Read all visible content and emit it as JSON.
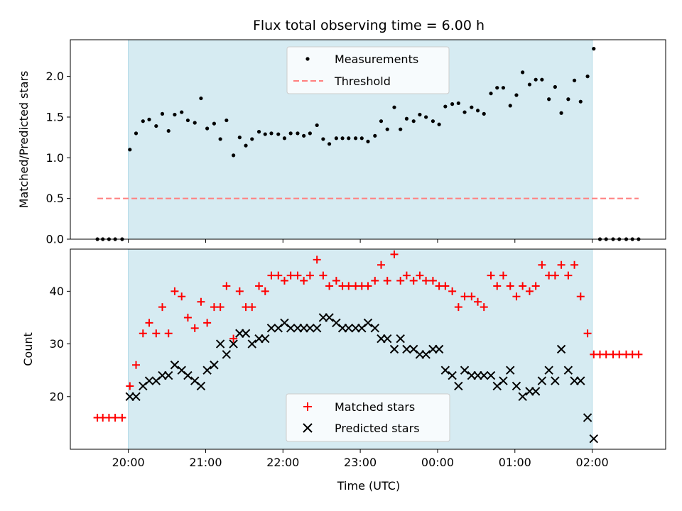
{
  "figure": {
    "title": "Flux total observing time = 6.00 h",
    "xlabel": "Time (UTC)",
    "x_tick_labels": [
      "20:00",
      "21:00",
      "22:00",
      "23:00",
      "00:00",
      "01:00",
      "02:00"
    ],
    "colors": {
      "shade": "#add8e6",
      "measurements": "#000000",
      "threshold": "#ff7f7f",
      "matched": "#ff0000",
      "predicted": "#000000"
    }
  },
  "chart_data": [
    {
      "type": "scatter",
      "ylabel": "Matched/Predicted stars",
      "ylim": [
        0,
        2.45
      ],
      "yticks": [
        "0.0",
        "0.5",
        "1.0",
        "1.5",
        "2.0"
      ],
      "xaxis": "hours after 20:00 UTC",
      "xlim": [
        -0.75,
        6.95
      ],
      "shaded_interval": [
        "20:00",
        "02:00"
      ],
      "legend_position": "top-center",
      "series": [
        {
          "name": "Measurements",
          "marker": "dot",
          "x": [
            -0.4,
            -0.33,
            -0.25,
            -0.17,
            -0.08,
            0.02,
            0.1,
            0.19,
            0.27,
            0.36,
            0.44,
            0.52,
            0.6,
            0.69,
            0.77,
            0.86,
            0.94,
            1.02,
            1.11,
            1.19,
            1.27,
            1.36,
            1.44,
            1.52,
            1.6,
            1.69,
            1.77,
            1.85,
            1.94,
            2.02,
            2.1,
            2.19,
            2.27,
            2.35,
            2.44,
            2.52,
            2.6,
            2.69,
            2.77,
            2.85,
            2.94,
            3.02,
            3.1,
            3.19,
            3.27,
            3.35,
            3.44,
            3.52,
            3.6,
            3.69,
            3.77,
            3.85,
            3.94,
            4.02,
            4.1,
            4.19,
            4.27,
            4.35,
            4.44,
            4.52,
            4.6,
            4.69,
            4.77,
            4.85,
            4.94,
            5.02,
            5.1,
            5.19,
            5.27,
            5.35,
            5.44,
            5.52,
            5.6,
            5.69,
            5.77,
            5.85,
            5.94,
            6.02,
            6.1,
            6.18,
            6.27,
            6.35,
            6.44,
            6.52,
            6.6
          ],
          "y": [
            0,
            0,
            0,
            0,
            0,
            1.1,
            1.3,
            1.45,
            1.47,
            1.39,
            1.54,
            1.33,
            1.53,
            1.56,
            1.46,
            1.43,
            1.73,
            1.36,
            1.42,
            1.23,
            1.46,
            1.03,
            1.25,
            1.15,
            1.23,
            1.32,
            1.29,
            1.3,
            1.29,
            1.24,
            1.3,
            1.3,
            1.27,
            1.3,
            1.4,
            1.23,
            1.17,
            1.24,
            1.24,
            1.24,
            1.24,
            1.24,
            1.2,
            1.27,
            1.45,
            1.35,
            1.62,
            1.35,
            1.48,
            1.45,
            1.53,
            1.5,
            1.45,
            1.41,
            1.63,
            1.66,
            1.67,
            1.56,
            1.62,
            1.58,
            1.54,
            1.79,
            1.86,
            1.86,
            1.64,
            1.77,
            2.05,
            1.9,
            1.96,
            1.96,
            1.72,
            1.87,
            1.55,
            1.72,
            1.95,
            1.69,
            2.0,
            2.34,
            0,
            0,
            0,
            0,
            0,
            0,
            0
          ]
        },
        {
          "name": "Threshold",
          "style": "dashed",
          "x": [
            -0.4,
            6.6
          ],
          "y": [
            0.5,
            0.5
          ]
        }
      ]
    },
    {
      "type": "scatter",
      "ylabel": "Count",
      "ylim": [
        10,
        48
      ],
      "yticks": [
        "20",
        "30",
        "40"
      ],
      "xaxis": "hours after 20:00 UTC",
      "xlim": [
        -0.75,
        6.95
      ],
      "shaded_interval": [
        "20:00",
        "02:00"
      ],
      "legend_position": "bottom-center",
      "series": [
        {
          "name": "Matched stars",
          "marker": "plus",
          "x": [
            -0.4,
            -0.33,
            -0.25,
            -0.17,
            -0.08,
            0.02,
            0.1,
            0.19,
            0.27,
            0.36,
            0.44,
            0.52,
            0.6,
            0.69,
            0.77,
            0.86,
            0.94,
            1.02,
            1.11,
            1.19,
            1.27,
            1.36,
            1.44,
            1.52,
            1.6,
            1.69,
            1.77,
            1.85,
            1.94,
            2.02,
            2.1,
            2.19,
            2.27,
            2.35,
            2.44,
            2.52,
            2.6,
            2.69,
            2.77,
            2.85,
            2.94,
            3.02,
            3.1,
            3.19,
            3.27,
            3.35,
            3.44,
            3.52,
            3.6,
            3.69,
            3.77,
            3.85,
            3.94,
            4.02,
            4.1,
            4.19,
            4.27,
            4.35,
            4.44,
            4.52,
            4.6,
            4.69,
            4.77,
            4.85,
            4.94,
            5.02,
            5.1,
            5.19,
            5.27,
            5.35,
            5.44,
            5.52,
            5.6,
            5.69,
            5.77,
            5.85,
            5.94,
            6.02,
            6.1,
            6.18,
            6.27,
            6.35,
            6.44,
            6.52,
            6.6
          ],
          "y": [
            16,
            16,
            16,
            16,
            16,
            22,
            26,
            32,
            34,
            32,
            37,
            32,
            40,
            39,
            35,
            33,
            38,
            34,
            37,
            37,
            41,
            31,
            40,
            37,
            37,
            41,
            40,
            43,
            43,
            42,
            43,
            43,
            42,
            43,
            46,
            43,
            41,
            42,
            41,
            41,
            41,
            41,
            41,
            42,
            45,
            42,
            47,
            42,
            43,
            42,
            43,
            42,
            42,
            41,
            41,
            40,
            37,
            39,
            39,
            38,
            37,
            43,
            41,
            43,
            41,
            39,
            41,
            40,
            41,
            45,
            43,
            43,
            45,
            43,
            45,
            39,
            32,
            28,
            28,
            28,
            28,
            28,
            28,
            28,
            28
          ]
        },
        {
          "name": "Predicted stars",
          "marker": "x",
          "x": [
            0.02,
            0.1,
            0.19,
            0.27,
            0.36,
            0.44,
            0.52,
            0.6,
            0.69,
            0.77,
            0.86,
            0.94,
            1.02,
            1.11,
            1.19,
            1.27,
            1.36,
            1.44,
            1.52,
            1.6,
            1.69,
            1.77,
            1.85,
            1.94,
            2.02,
            2.1,
            2.19,
            2.27,
            2.35,
            2.44,
            2.52,
            2.6,
            2.69,
            2.77,
            2.85,
            2.94,
            3.02,
            3.1,
            3.19,
            3.27,
            3.35,
            3.44,
            3.52,
            3.6,
            3.69,
            3.77,
            3.85,
            3.94,
            4.02,
            4.1,
            4.19,
            4.27,
            4.35,
            4.44,
            4.52,
            4.6,
            4.69,
            4.77,
            4.85,
            4.94,
            5.02,
            5.1,
            5.19,
            5.27,
            5.35,
            5.44,
            5.52,
            5.6,
            5.69,
            5.77,
            5.85,
            5.94,
            6.02
          ],
          "y": [
            20,
            20,
            22,
            23,
            23,
            24,
            24,
            26,
            25,
            24,
            23,
            22,
            25,
            26,
            30,
            28,
            30,
            32,
            32,
            30,
            31,
            31,
            33,
            33,
            34,
            33,
            33,
            33,
            33,
            33,
            35,
            35,
            34,
            33,
            33,
            33,
            33,
            34,
            33,
            31,
            31,
            29,
            31,
            29,
            29,
            28,
            28,
            29,
            29,
            25,
            24,
            22,
            25,
            24,
            24,
            24,
            24,
            22,
            23,
            25,
            22,
            20,
            21,
            21,
            23,
            25,
            23,
            29,
            25,
            23,
            23,
            16,
            12
          ]
        }
      ]
    }
  ]
}
